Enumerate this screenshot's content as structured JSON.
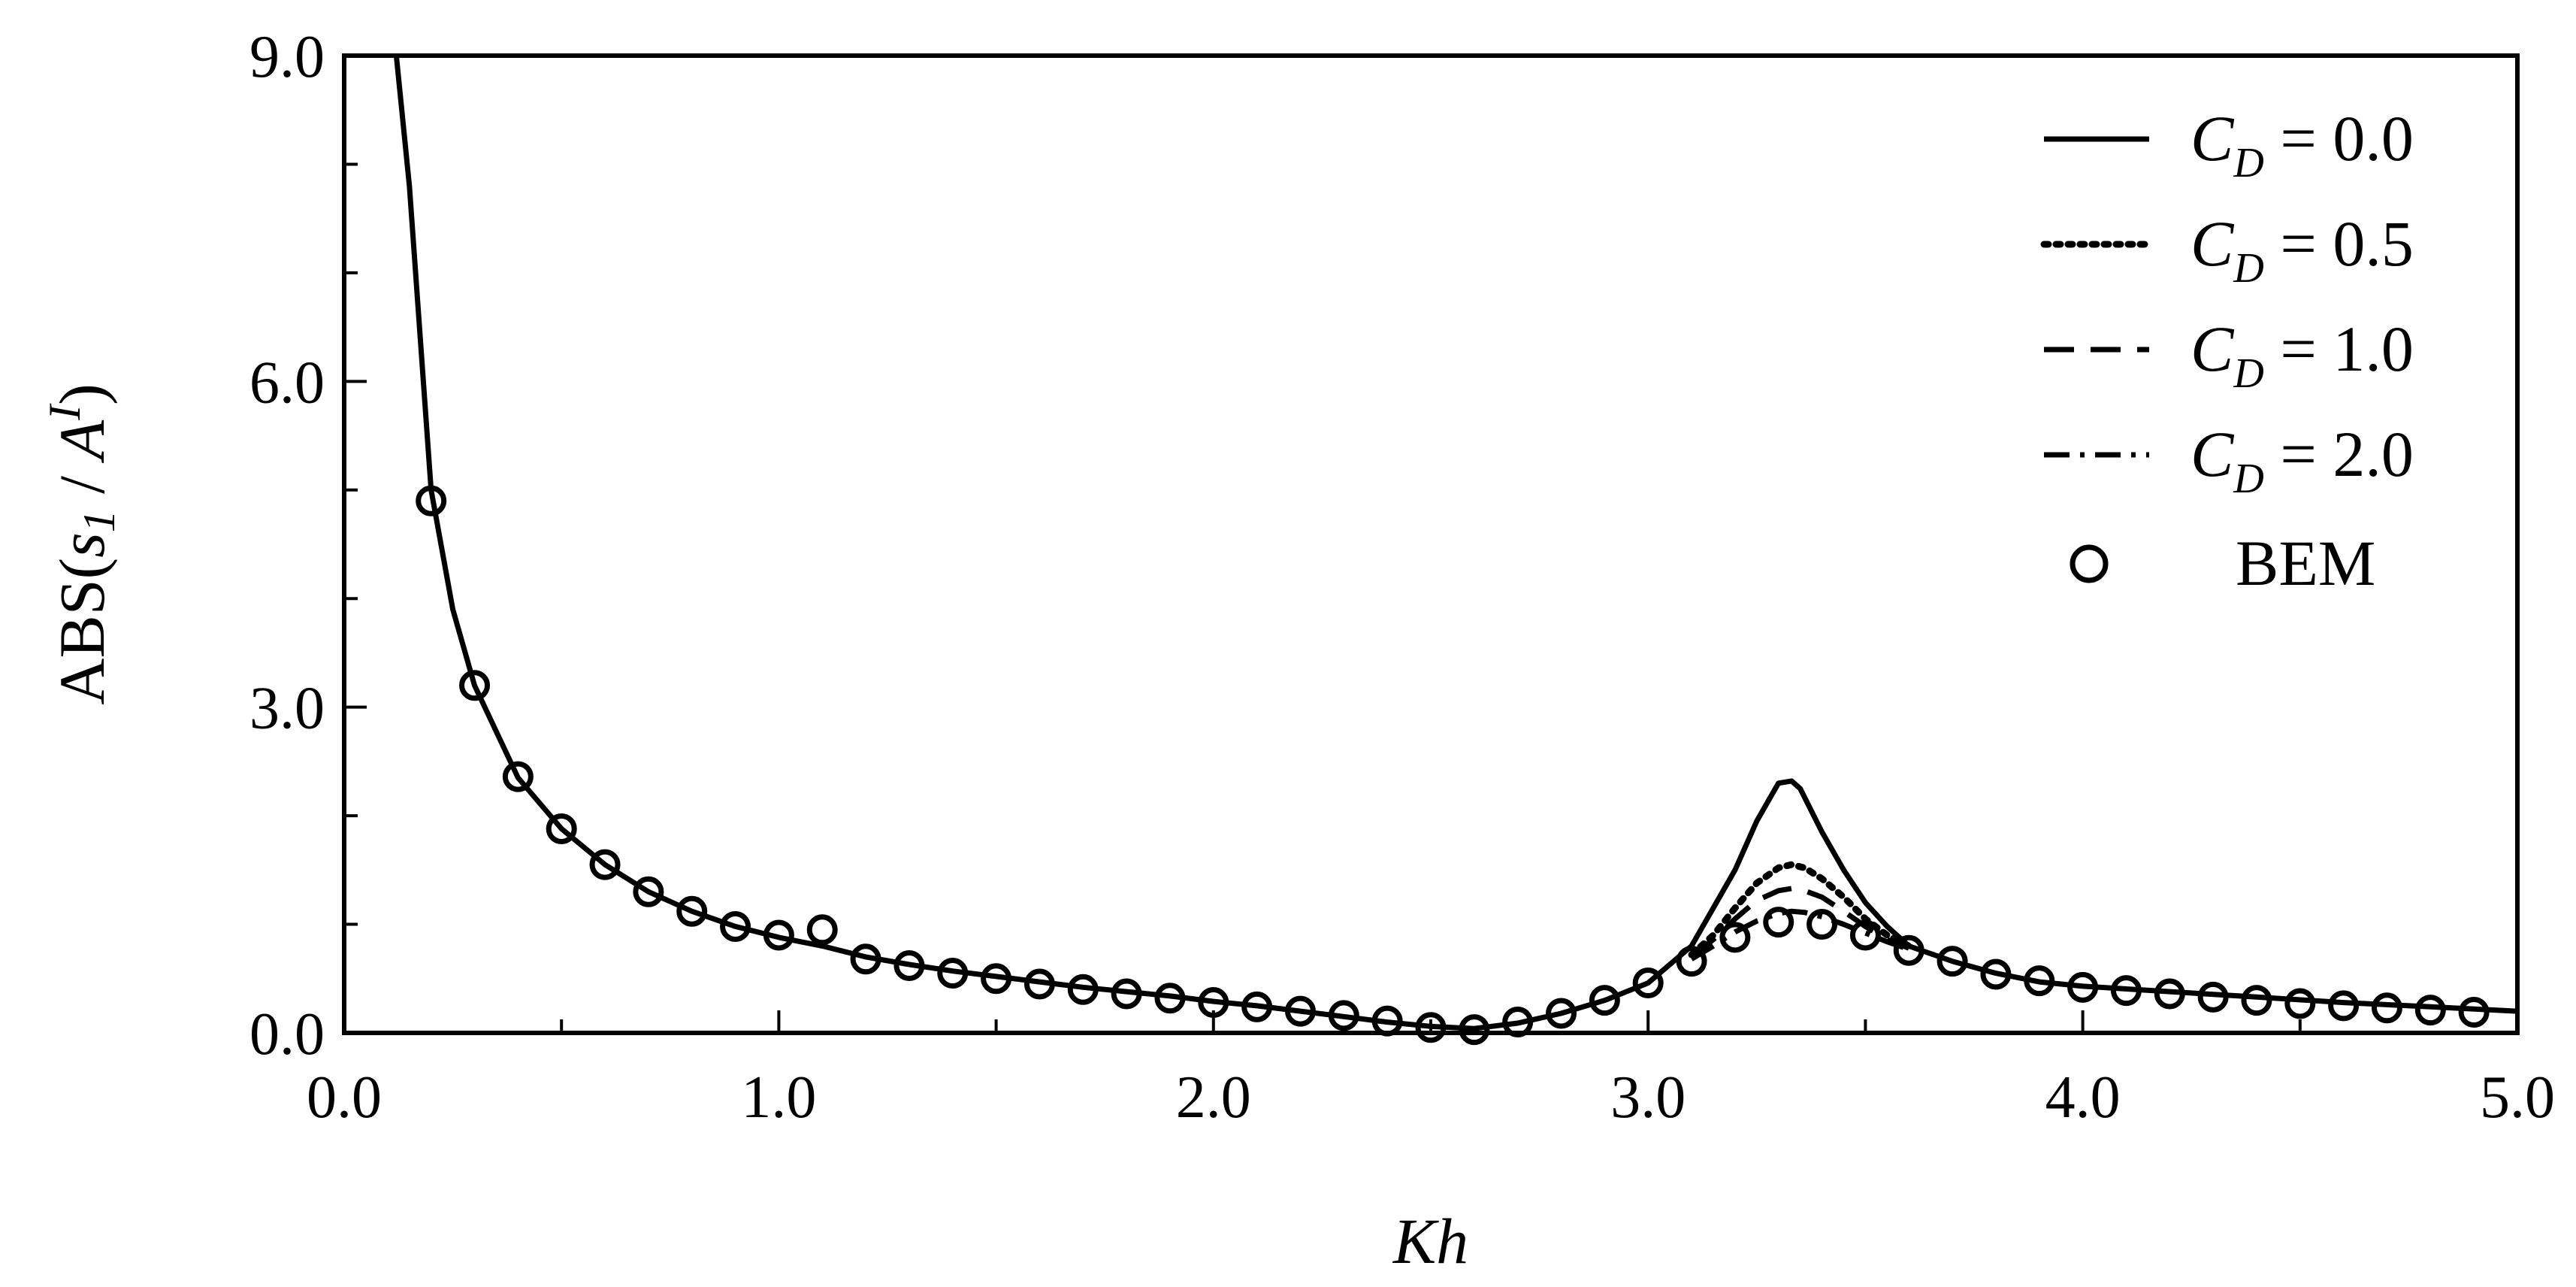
{
  "chart_data": {
    "type": "line",
    "xlabel": "Kh",
    "ylabel": "ABS( s1 / AI )",
    "ylabel_parts": {
      "prefix": "ABS(",
      "var": "s",
      "var_sub": "1",
      "sep": " / ",
      "var2": "A",
      "var2_sup": "I",
      "suffix": ")"
    },
    "xlim": [
      0.0,
      5.0
    ],
    "ylim": [
      0.0,
      9.0
    ],
    "x_ticks": [
      "0.0",
      "1.0",
      "2.0",
      "3.0",
      "4.0",
      "5.0"
    ],
    "y_ticks": [
      "0.0",
      "3.0",
      "6.0",
      "9.0"
    ],
    "x_tick_values": [
      0.0,
      1.0,
      2.0,
      3.0,
      4.0,
      5.0
    ],
    "y_tick_values": [
      0.0,
      3.0,
      6.0,
      9.0
    ],
    "y_minor_tick_values": [
      1.0,
      2.0,
      4.0,
      5.0,
      7.0,
      8.0
    ],
    "x_minor_tick_values": [
      0.5,
      1.5,
      2.5,
      3.5,
      4.5
    ],
    "grid": false,
    "legend_position": "top-right",
    "series": [
      {
        "name": "C_D = 0.0",
        "legend_var": "C",
        "legend_sub": "D",
        "legend_rest": " = 0.0",
        "style": "solid",
        "x": [
          0.12,
          0.15,
          0.2,
          0.25,
          0.3,
          0.4,
          0.5,
          0.6,
          0.7,
          0.8,
          0.9,
          1.0,
          1.1,
          1.2,
          1.3,
          1.4,
          1.5,
          1.6,
          1.7,
          1.8,
          1.9,
          2.0,
          2.1,
          2.2,
          2.3,
          2.4,
          2.5,
          2.6,
          2.7,
          2.8,
          2.9,
          3.0,
          3.1,
          3.2,
          3.25,
          3.3,
          3.33,
          3.35,
          3.4,
          3.45,
          3.5,
          3.55,
          3.6,
          3.7,
          3.8,
          3.9,
          4.0,
          4.2,
          4.4,
          4.6,
          4.8,
          5.0
        ],
        "y": [
          9.0,
          7.8,
          5.0,
          3.9,
          3.2,
          2.35,
          1.88,
          1.55,
          1.3,
          1.12,
          0.98,
          0.88,
          0.8,
          0.7,
          0.63,
          0.57,
          0.52,
          0.47,
          0.42,
          0.38,
          0.34,
          0.29,
          0.25,
          0.2,
          0.15,
          0.1,
          0.06,
          0.04,
          0.09,
          0.18,
          0.3,
          0.46,
          0.8,
          1.5,
          1.95,
          2.3,
          2.32,
          2.25,
          1.85,
          1.5,
          1.2,
          0.98,
          0.8,
          0.66,
          0.55,
          0.47,
          0.43,
          0.38,
          0.33,
          0.28,
          0.24,
          0.2
        ]
      },
      {
        "name": "C_D = 0.5",
        "legend_var": "C",
        "legend_sub": "D",
        "legend_rest": " = 0.5",
        "style": "dotted",
        "x": [
          3.1,
          3.15,
          3.2,
          3.25,
          3.3,
          3.33,
          3.36,
          3.4,
          3.45,
          3.5,
          3.55,
          3.6
        ],
        "y": [
          0.72,
          0.9,
          1.15,
          1.38,
          1.52,
          1.55,
          1.52,
          1.42,
          1.25,
          1.05,
          0.9,
          0.8
        ]
      },
      {
        "name": "C_D = 1.0",
        "legend_var": "C",
        "legend_sub": "D",
        "legend_rest": " = 1.0",
        "style": "dashed",
        "x": [
          3.1,
          3.15,
          3.2,
          3.25,
          3.3,
          3.33,
          3.36,
          3.4,
          3.45,
          3.5,
          3.55,
          3.6
        ],
        "y": [
          0.7,
          0.86,
          1.05,
          1.22,
          1.31,
          1.33,
          1.31,
          1.25,
          1.12,
          0.98,
          0.86,
          0.78
        ]
      },
      {
        "name": "C_D = 2.0",
        "legend_var": "C",
        "legend_sub": "D",
        "legend_rest": " = 2.0",
        "style": "dashdot",
        "x": [
          3.1,
          3.15,
          3.2,
          3.25,
          3.3,
          3.33,
          3.36,
          3.4,
          3.45,
          3.5,
          3.55,
          3.6
        ],
        "y": [
          0.68,
          0.8,
          0.93,
          1.03,
          1.1,
          1.12,
          1.11,
          1.07,
          1.0,
          0.92,
          0.84,
          0.77
        ]
      },
      {
        "name": "BEM",
        "style": "markers",
        "x": [
          0.2,
          0.3,
          0.4,
          0.5,
          0.6,
          0.7,
          0.8,
          0.9,
          1.0,
          1.1,
          1.2,
          1.3,
          1.4,
          1.5,
          1.6,
          1.7,
          1.8,
          1.9,
          2.0,
          2.1,
          2.2,
          2.3,
          2.4,
          2.5,
          2.6,
          2.7,
          2.8,
          2.9,
          3.0,
          3.1,
          3.2,
          3.3,
          3.4,
          3.5,
          3.6,
          3.7,
          3.8,
          3.9,
          4.0,
          4.1,
          4.2,
          4.3,
          4.4,
          4.5,
          4.6,
          4.7,
          4.8,
          4.9
        ],
        "y": [
          4.9,
          3.2,
          2.36,
          1.88,
          1.55,
          1.3,
          1.12,
          0.98,
          0.9,
          0.95,
          0.68,
          0.62,
          0.55,
          0.5,
          0.45,
          0.4,
          0.36,
          0.32,
          0.28,
          0.24,
          0.2,
          0.16,
          0.11,
          0.05,
          0.03,
          0.1,
          0.18,
          0.3,
          0.46,
          0.66,
          0.88,
          1.02,
          1.0,
          0.9,
          0.76,
          0.66,
          0.54,
          0.48,
          0.42,
          0.39,
          0.36,
          0.33,
          0.3,
          0.27,
          0.25,
          0.23,
          0.21,
          0.19
        ]
      }
    ]
  },
  "colors": {
    "line": "#000000",
    "background": "#ffffff"
  }
}
